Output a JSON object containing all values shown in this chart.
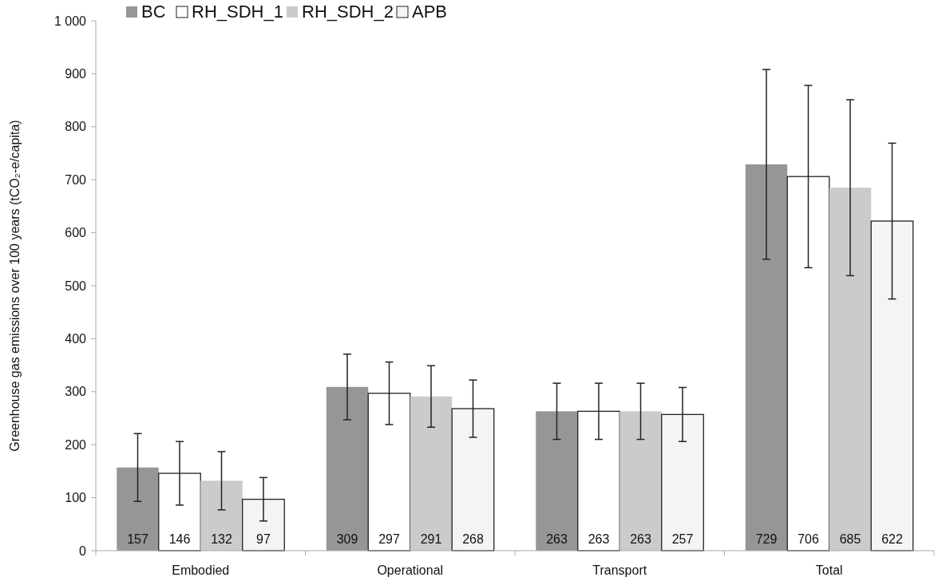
{
  "chart_data": {
    "type": "bar",
    "ylabel": "Greenhouse gas emissions over 100 years (tCO₂-e/capita)",
    "categories": [
      "Embodied",
      "Operational",
      "Transport",
      "Total"
    ],
    "series": [
      {
        "name": "BC",
        "color": "#969696",
        "values": [
          157,
          309,
          263,
          729
        ],
        "errors": [
          64,
          62,
          53,
          179
        ]
      },
      {
        "name": "RH_SDH_1",
        "color": "#ffffff",
        "values": [
          146,
          297,
          263,
          706
        ],
        "errors": [
          60,
          59,
          53,
          172
        ]
      },
      {
        "name": "RH_SDH_2",
        "color": "#cbcbcb",
        "values": [
          132,
          291,
          263,
          685
        ],
        "errors": [
          55,
          58,
          53,
          166
        ]
      },
      {
        "name": "APB",
        "color": "#f4f4f4",
        "values": [
          97,
          268,
          257,
          622
        ],
        "errors": [
          41,
          54,
          51,
          147
        ]
      }
    ],
    "ylim": [
      0,
      1000
    ],
    "yticks": [
      0,
      100,
      200,
      300,
      400,
      500,
      600,
      700,
      800,
      900,
      {
        "value": 1000,
        "label": "1 000"
      }
    ],
    "data_labels": true,
    "legend": "top left"
  }
}
